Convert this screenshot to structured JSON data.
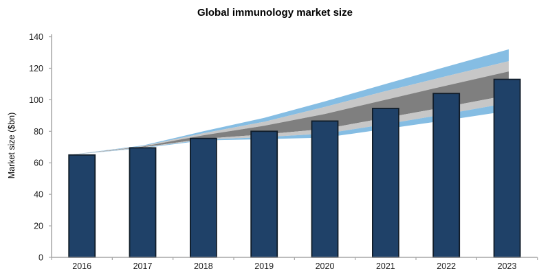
{
  "chart_data": {
    "type": "bar",
    "title": "Global immunology market size",
    "ylabel": "Market size ($bn)",
    "xlabel": "",
    "categories": [
      "2016",
      "2017",
      "2018",
      "2019",
      "2020",
      "2021",
      "2022",
      "2023"
    ],
    "series": [
      {
        "name": "Market size ($bn)",
        "values": [
          65,
          69.5,
          75.5,
          80,
          86.5,
          94.5,
          104,
          113
        ]
      }
    ],
    "ylim": [
      0,
      140
    ],
    "yticks": [
      0,
      20,
      40,
      60,
      80,
      100,
      120,
      140
    ],
    "grid": false,
    "legend": "none",
    "forecast_fan": {
      "note": "uncertainty fan widening from 2016 bar top to 2023; bands from outside in: light blue, light gray, dark gray core",
      "boundaries": {
        "blue_top": [
          65,
          71.0,
          80.0,
          88.5,
          99.0,
          110.0,
          121.0,
          132.0
        ],
        "gray_top": [
          65,
          70.6,
          78.8,
          86.0,
          95.5,
          105.5,
          115.0,
          124.5
        ],
        "dark_top": [
          65,
          70.3,
          77.5,
          83.5,
          91.0,
          100.0,
          109.0,
          118.0
        ],
        "dark_bottom": [
          65,
          69.9,
          75.2,
          78.0,
          81.5,
          88.5,
          95.5,
          103.0
        ],
        "gray_bottom": [
          65,
          69.6,
          74.7,
          76.3,
          78.5,
          84.5,
          91.0,
          98.0
        ],
        "blue_bottom": [
          65,
          69.3,
          74.2,
          75.0,
          76.0,
          81.5,
          87.0,
          93.0
        ]
      }
    },
    "colors": {
      "bar_fill": "#1f4168",
      "bar_border": "#101c28",
      "band_blue": "#85bde3",
      "band_light_gray": "#c7c7c7",
      "band_dark_gray": "#7f7f7f",
      "axis": "#a6a6a6",
      "text": "#1a1a1a"
    }
  }
}
